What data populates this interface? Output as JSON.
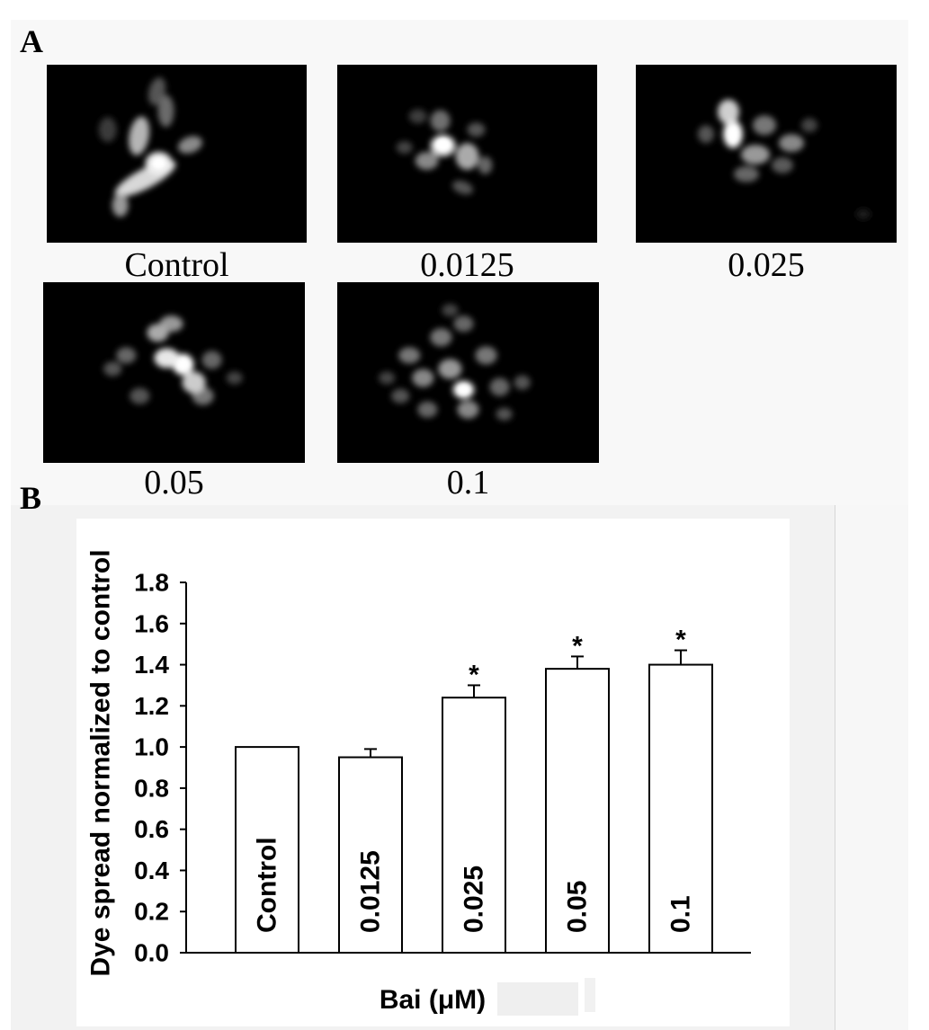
{
  "panel_a": {
    "label": "A",
    "images": [
      {
        "caption": "Control"
      },
      {
        "caption": "0.0125"
      },
      {
        "caption": "0.025"
      },
      {
        "caption": "0.05"
      },
      {
        "caption": "0.1"
      }
    ]
  },
  "panel_b": {
    "label": "B"
  },
  "chart_data": {
    "type": "bar",
    "categories": [
      "Control",
      "0.0125",
      "0.025",
      "0.05",
      "0.1"
    ],
    "values": [
      1.0,
      0.95,
      1.24,
      1.38,
      1.4
    ],
    "error_bars": [
      0,
      0.04,
      0.06,
      0.06,
      0.07
    ],
    "significance": [
      "",
      "",
      "*",
      "*",
      "*"
    ],
    "xlabel": "Bai (μM)",
    "ylabel": "Dye spread normalized to control",
    "ylim": [
      0,
      1.8
    ],
    "yticks": [
      "0.0",
      "0.2",
      "0.4",
      "0.6",
      "0.8",
      "1.0",
      "1.2",
      "1.4",
      "1.6",
      "1.8"
    ],
    "grid": false,
    "colors": {
      "bar_fill": "#ffffff",
      "bar_edge": "#000000",
      "axis": "#000000"
    }
  }
}
